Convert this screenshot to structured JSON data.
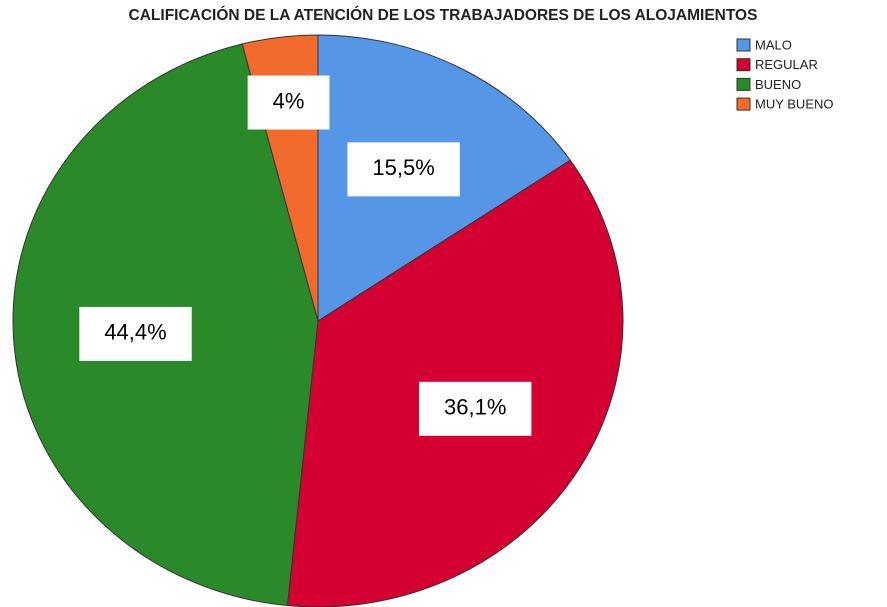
{
  "chart_data": {
    "type": "pie",
    "title": "CALIFICACIÓN DE LA ATENCIÓN DE LOS TRABAJADORES DE LOS ALOJAMIENTOS",
    "categories": [
      "MALO",
      "REGULAR",
      "BUENO",
      "MUY BUENO"
    ],
    "values": [
      15.5,
      36.1,
      44.4,
      4
    ],
    "value_labels": [
      "15,5%",
      "36,1%",
      "44,4%",
      "4%"
    ],
    "colors": [
      "#5597e6",
      "#d40032",
      "#2a8a2a",
      "#f26b2c"
    ],
    "legend": "top-right"
  }
}
